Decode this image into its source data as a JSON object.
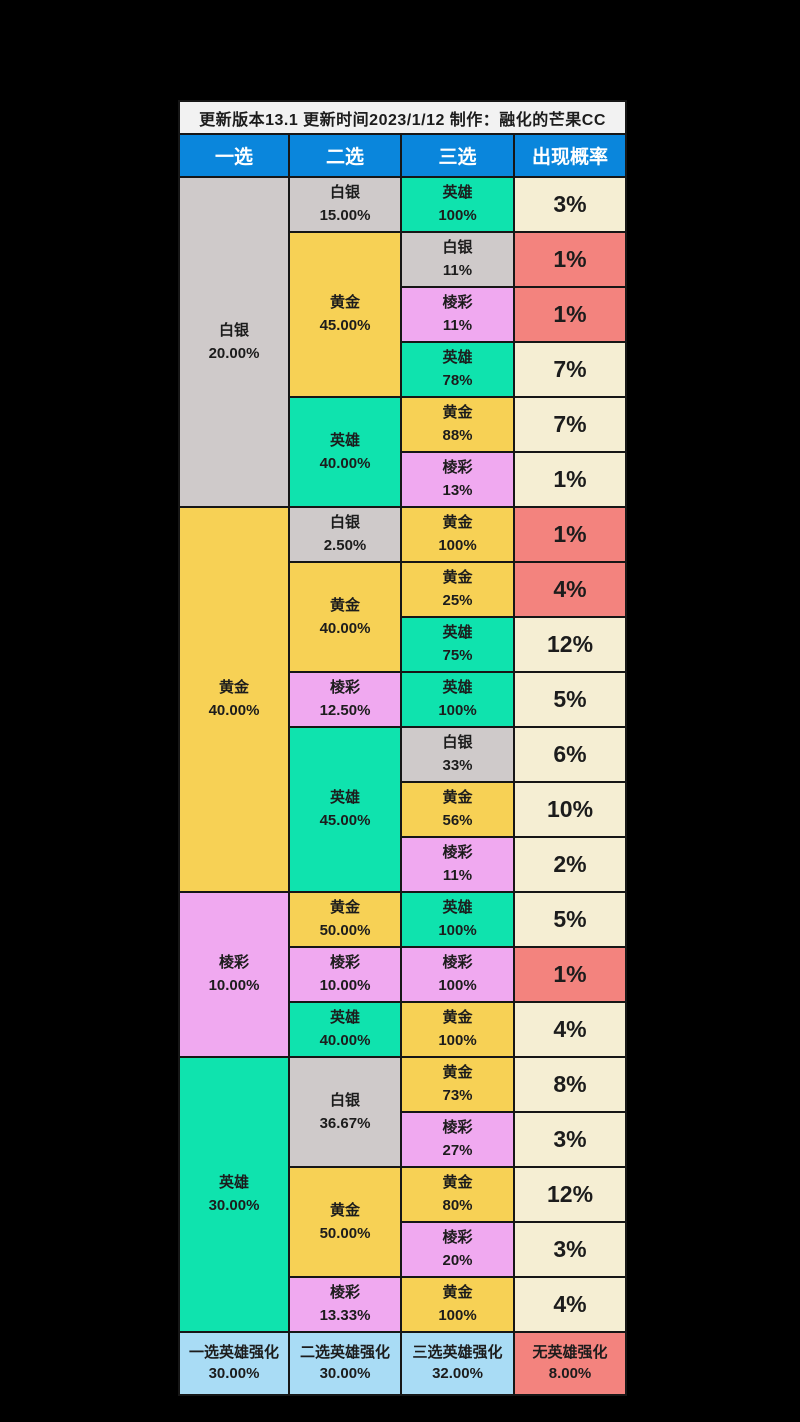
{
  "title": "更新版本13.1  更新时间2023/1/12  制作：融化的芒果CC",
  "columns": [
    "一选",
    "二选",
    "三选",
    "出现概率"
  ],
  "colors": {
    "header_blue": "#0a86dc",
    "silver": "#cfcaca",
    "gold": "#f7d155",
    "prismatic": "#f0a9f0",
    "hero": "#0fe3ae",
    "cream": "#f5eed3",
    "red": "#f3837e",
    "footer_blue": "#a9dcf5",
    "title_bg": "#f2f2f2"
  },
  "sections": [
    {
      "choice1": {
        "label": "白银",
        "pct": "20.00%",
        "tier": "silver"
      },
      "groups": [
        {
          "choice2": {
            "label": "白银",
            "pct": "15.00%",
            "tier": "silver"
          },
          "rows": [
            {
              "choice3": {
                "label": "英雄",
                "pct": "100%",
                "tier": "hero"
              },
              "prob": "3%",
              "prob_color": "cream"
            }
          ]
        },
        {
          "choice2": {
            "label": "黄金",
            "pct": "45.00%",
            "tier": "gold"
          },
          "rows": [
            {
              "choice3": {
                "label": "白银",
                "pct": "11%",
                "tier": "silver"
              },
              "prob": "1%",
              "prob_color": "red"
            },
            {
              "choice3": {
                "label": "棱彩",
                "pct": "11%",
                "tier": "prismatic"
              },
              "prob": "1%",
              "prob_color": "red"
            },
            {
              "choice3": {
                "label": "英雄",
                "pct": "78%",
                "tier": "hero"
              },
              "prob": "7%",
              "prob_color": "cream"
            }
          ]
        },
        {
          "choice2": {
            "label": "英雄",
            "pct": "40.00%",
            "tier": "hero"
          },
          "rows": [
            {
              "choice3": {
                "label": "黄金",
                "pct": "88%",
                "tier": "gold"
              },
              "prob": "7%",
              "prob_color": "cream"
            },
            {
              "choice3": {
                "label": "棱彩",
                "pct": "13%",
                "tier": "prismatic"
              },
              "prob": "1%",
              "prob_color": "cream"
            }
          ]
        }
      ]
    },
    {
      "choice1": {
        "label": "黄金",
        "pct": "40.00%",
        "tier": "gold"
      },
      "groups": [
        {
          "choice2": {
            "label": "白银",
            "pct": "2.50%",
            "tier": "silver"
          },
          "rows": [
            {
              "choice3": {
                "label": "黄金",
                "pct": "100%",
                "tier": "gold"
              },
              "prob": "1%",
              "prob_color": "red"
            }
          ]
        },
        {
          "choice2": {
            "label": "黄金",
            "pct": "40.00%",
            "tier": "gold"
          },
          "rows": [
            {
              "choice3": {
                "label": "黄金",
                "pct": "25%",
                "tier": "gold"
              },
              "prob": "4%",
              "prob_color": "red"
            },
            {
              "choice3": {
                "label": "英雄",
                "pct": "75%",
                "tier": "hero"
              },
              "prob": "12%",
              "prob_color": "cream"
            }
          ]
        },
        {
          "choice2": {
            "label": "棱彩",
            "pct": "12.50%",
            "tier": "prismatic"
          },
          "rows": [
            {
              "choice3": {
                "label": "英雄",
                "pct": "100%",
                "tier": "hero"
              },
              "prob": "5%",
              "prob_color": "cream"
            }
          ]
        },
        {
          "choice2": {
            "label": "英雄",
            "pct": "45.00%",
            "tier": "hero"
          },
          "rows": [
            {
              "choice3": {
                "label": "白银",
                "pct": "33%",
                "tier": "silver"
              },
              "prob": "6%",
              "prob_color": "cream"
            },
            {
              "choice3": {
                "label": "黄金",
                "pct": "56%",
                "tier": "gold"
              },
              "prob": "10%",
              "prob_color": "cream"
            },
            {
              "choice3": {
                "label": "棱彩",
                "pct": "11%",
                "tier": "prismatic"
              },
              "prob": "2%",
              "prob_color": "cream"
            }
          ]
        }
      ]
    },
    {
      "choice1": {
        "label": "棱彩",
        "pct": "10.00%",
        "tier": "prismatic"
      },
      "groups": [
        {
          "choice2": {
            "label": "黄金",
            "pct": "50.00%",
            "tier": "gold"
          },
          "rows": [
            {
              "choice3": {
                "label": "英雄",
                "pct": "100%",
                "tier": "hero"
              },
              "prob": "5%",
              "prob_color": "cream"
            }
          ]
        },
        {
          "choice2": {
            "label": "棱彩",
            "pct": "10.00%",
            "tier": "prismatic"
          },
          "rows": [
            {
              "choice3": {
                "label": "棱彩",
                "pct": "100%",
                "tier": "prismatic"
              },
              "prob": "1%",
              "prob_color": "red"
            }
          ]
        },
        {
          "choice2": {
            "label": "英雄",
            "pct": "40.00%",
            "tier": "hero"
          },
          "rows": [
            {
              "choice3": {
                "label": "黄金",
                "pct": "100%",
                "tier": "gold"
              },
              "prob": "4%",
              "prob_color": "cream"
            }
          ]
        }
      ]
    },
    {
      "choice1": {
        "label": "英雄",
        "pct": "30.00%",
        "tier": "hero"
      },
      "groups": [
        {
          "choice2": {
            "label": "白银",
            "pct": "36.67%",
            "tier": "silver"
          },
          "rows": [
            {
              "choice3": {
                "label": "黄金",
                "pct": "73%",
                "tier": "gold"
              },
              "prob": "8%",
              "prob_color": "cream"
            },
            {
              "choice3": {
                "label": "棱彩",
                "pct": "27%",
                "tier": "prismatic"
              },
              "prob": "3%",
              "prob_color": "cream"
            }
          ]
        },
        {
          "choice2": {
            "label": "黄金",
            "pct": "50.00%",
            "tier": "gold"
          },
          "rows": [
            {
              "choice3": {
                "label": "黄金",
                "pct": "80%",
                "tier": "gold"
              },
              "prob": "12%",
              "prob_color": "cream"
            },
            {
              "choice3": {
                "label": "棱彩",
                "pct": "20%",
                "tier": "prismatic"
              },
              "prob": "3%",
              "prob_color": "cream"
            }
          ]
        },
        {
          "choice2": {
            "label": "棱彩",
            "pct": "13.33%",
            "tier": "prismatic"
          },
          "rows": [
            {
              "choice3": {
                "label": "黄金",
                "pct": "100%",
                "tier": "gold"
              },
              "prob": "4%",
              "prob_color": "cream"
            }
          ]
        }
      ]
    }
  ],
  "footer": [
    {
      "label": "一选英雄强化",
      "pct": "30.00%",
      "color": "footer_blue"
    },
    {
      "label": "二选英雄强化",
      "pct": "30.00%",
      "color": "footer_blue"
    },
    {
      "label": "三选英雄强化",
      "pct": "32.00%",
      "color": "footer_blue"
    },
    {
      "label": "无英雄强化",
      "pct": "8.00%",
      "color": "red"
    }
  ],
  "chart_data": {
    "type": "table",
    "title": "更新版本13.1  更新时间2023/1/12  制作：融化的芒果CC",
    "columns": [
      "一选",
      "二选",
      "三选",
      "出现概率"
    ],
    "rows": [
      [
        "白银 20.00%",
        "白银 15.00%",
        "英雄 100%",
        "3%"
      ],
      [
        "白银 20.00%",
        "黄金 45.00%",
        "白银 11%",
        "1%"
      ],
      [
        "白银 20.00%",
        "黄金 45.00%",
        "棱彩 11%",
        "1%"
      ],
      [
        "白银 20.00%",
        "黄金 45.00%",
        "英雄 78%",
        "7%"
      ],
      [
        "白银 20.00%",
        "英雄 40.00%",
        "黄金 88%",
        "7%"
      ],
      [
        "白银 20.00%",
        "英雄 40.00%",
        "棱彩 13%",
        "1%"
      ],
      [
        "黄金 40.00%",
        "白银 2.50%",
        "黄金 100%",
        "1%"
      ],
      [
        "黄金 40.00%",
        "黄金 40.00%",
        "黄金 25%",
        "4%"
      ],
      [
        "黄金 40.00%",
        "黄金 40.00%",
        "英雄 75%",
        "12%"
      ],
      [
        "黄金 40.00%",
        "棱彩 12.50%",
        "英雄 100%",
        "5%"
      ],
      [
        "黄金 40.00%",
        "英雄 45.00%",
        "白银 33%",
        "6%"
      ],
      [
        "黄金 40.00%",
        "英雄 45.00%",
        "黄金 56%",
        "10%"
      ],
      [
        "黄金 40.00%",
        "英雄 45.00%",
        "棱彩 11%",
        "2%"
      ],
      [
        "棱彩 10.00%",
        "黄金 50.00%",
        "英雄 100%",
        "5%"
      ],
      [
        "棱彩 10.00%",
        "棱彩 10.00%",
        "棱彩 100%",
        "1%"
      ],
      [
        "棱彩 10.00%",
        "英雄 40.00%",
        "黄金 100%",
        "4%"
      ],
      [
        "英雄 30.00%",
        "白银 36.67%",
        "黄金 73%",
        "8%"
      ],
      [
        "英雄 30.00%",
        "白银 36.67%",
        "棱彩 27%",
        "3%"
      ],
      [
        "英雄 30.00%",
        "黄金 50.00%",
        "黄金 80%",
        "12%"
      ],
      [
        "英雄 30.00%",
        "黄金 50.00%",
        "棱彩 20%",
        "3%"
      ],
      [
        "英雄 30.00%",
        "棱彩 13.33%",
        "黄金 100%",
        "4%"
      ]
    ]
  }
}
